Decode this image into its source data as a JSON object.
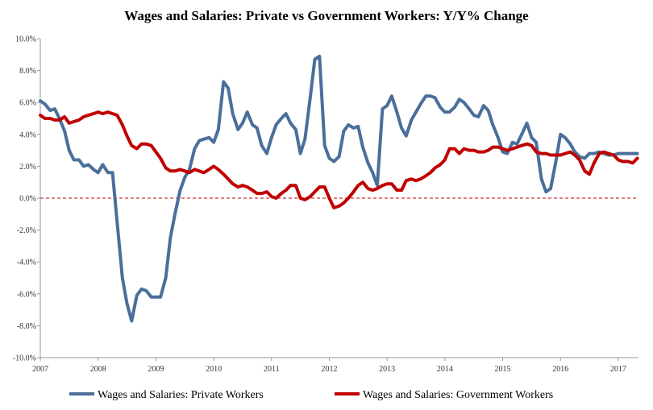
{
  "chart_data": {
    "type": "line",
    "title": "Wages and Salaries: Private vs Government Workers: Y/Y% Change",
    "xlabel": "",
    "ylabel": "",
    "xlim": [
      2007.0,
      2017.35
    ],
    "ylim": [
      -10,
      10
    ],
    "y_ticks": [
      10,
      8,
      6,
      4,
      2,
      0,
      -2,
      -4,
      -6,
      -8,
      -10
    ],
    "y_tick_labels": [
      "10.0%",
      "8.0%",
      "6.0%",
      "4.0%",
      "2.0%",
      "0.0%",
      "-2.0%",
      "-4.0%",
      "-6.0%",
      "-8.0%",
      "-10.0%"
    ],
    "x_ticks": [
      2007,
      2008,
      2009,
      2010,
      2011,
      2012,
      2013,
      2014,
      2015,
      2016,
      2017
    ],
    "x_tick_labels": [
      "2007",
      "2008",
      "2009",
      "2010",
      "2011",
      "2012",
      "2013",
      "2014",
      "2015",
      "2016",
      "2017"
    ],
    "reference_line": {
      "y": 0,
      "color": "#c00000",
      "style": "dashed"
    },
    "legend_position": "bottom",
    "series": [
      {
        "name": "Wages and Salaries: Private Workers",
        "color": "#4a6f9a",
        "x": [
          2007.0,
          2007.08,
          2007.17,
          2007.25,
          2007.33,
          2007.42,
          2007.5,
          2007.58,
          2007.67,
          2007.75,
          2007.83,
          2007.92,
          2008.0,
          2008.08,
          2008.17,
          2008.25,
          2008.33,
          2008.42,
          2008.5,
          2008.58,
          2008.67,
          2008.75,
          2008.83,
          2008.92,
          2009.0,
          2009.08,
          2009.17,
          2009.25,
          2009.33,
          2009.42,
          2009.5,
          2009.58,
          2009.67,
          2009.75,
          2009.83,
          2009.92,
          2010.0,
          2010.08,
          2010.17,
          2010.25,
          2010.33,
          2010.42,
          2010.5,
          2010.58,
          2010.67,
          2010.75,
          2010.83,
          2010.92,
          2011.0,
          2011.08,
          2011.17,
          2011.25,
          2011.33,
          2011.42,
          2011.5,
          2011.58,
          2011.67,
          2011.75,
          2011.83,
          2011.92,
          2012.0,
          2012.08,
          2012.17,
          2012.25,
          2012.33,
          2012.42,
          2012.5,
          2012.58,
          2012.67,
          2012.75,
          2012.83,
          2012.92,
          2013.0,
          2013.08,
          2013.17,
          2013.25,
          2013.33,
          2013.42,
          2013.5,
          2013.58,
          2013.67,
          2013.75,
          2013.83,
          2013.92,
          2014.0,
          2014.08,
          2014.17,
          2014.25,
          2014.33,
          2014.42,
          2014.5,
          2014.58,
          2014.67,
          2014.75,
          2014.83,
          2014.92,
          2015.0,
          2015.08,
          2015.17,
          2015.25,
          2015.33,
          2015.42,
          2015.5,
          2015.58,
          2015.67,
          2015.75,
          2015.83,
          2015.92,
          2016.0,
          2016.08,
          2016.17,
          2016.25,
          2016.33,
          2016.42,
          2016.5,
          2016.58,
          2016.67,
          2016.75,
          2016.83,
          2016.92,
          2017.0,
          2017.08,
          2017.17,
          2017.25,
          2017.33
        ],
        "values": [
          6.1,
          5.9,
          5.5,
          5.6,
          5.0,
          4.2,
          3.0,
          2.4,
          2.4,
          2.0,
          2.1,
          1.8,
          1.6,
          2.1,
          1.6,
          1.6,
          -1.5,
          -5.0,
          -6.6,
          -7.7,
          -6.1,
          -5.7,
          -5.8,
          -6.2,
          -6.2,
          -6.2,
          -5.0,
          -2.5,
          -1.0,
          0.5,
          1.3,
          1.8,
          3.1,
          3.6,
          3.7,
          3.8,
          3.5,
          4.3,
          7.3,
          6.9,
          5.3,
          4.3,
          4.7,
          5.4,
          4.6,
          4.4,
          3.3,
          2.8,
          3.8,
          4.6,
          5.0,
          5.3,
          4.7,
          4.3,
          2.8,
          3.7,
          6.3,
          8.7,
          8.9,
          3.3,
          2.5,
          2.3,
          2.6,
          4.2,
          4.6,
          4.4,
          4.5,
          3.2,
          2.2,
          1.6,
          0.8,
          5.6,
          5.8,
          6.4,
          5.4,
          4.4,
          3.9,
          4.9,
          5.4,
          5.9,
          6.4,
          6.4,
          6.3,
          5.7,
          5.4,
          5.4,
          5.7,
          6.2,
          6.0,
          5.6,
          5.2,
          5.1,
          5.8,
          5.5,
          4.6,
          3.8,
          2.9,
          2.8,
          3.5,
          3.4,
          4.0,
          4.7,
          3.8,
          3.5,
          1.2,
          0.4,
          0.6,
          2.3,
          4.0,
          3.8,
          3.4,
          2.9,
          2.6,
          2.5,
          2.8,
          2.8,
          2.9,
          2.8,
          2.7,
          2.7,
          2.8,
          2.8,
          2.8,
          2.8,
          2.8
        ]
      },
      {
        "name": "Wages and Salaries: Government Workers",
        "color": "#c00000",
        "x": [
          2007.0,
          2007.08,
          2007.17,
          2007.25,
          2007.33,
          2007.42,
          2007.5,
          2007.58,
          2007.67,
          2007.75,
          2007.83,
          2007.92,
          2008.0,
          2008.08,
          2008.17,
          2008.25,
          2008.33,
          2008.42,
          2008.5,
          2008.58,
          2008.67,
          2008.75,
          2008.83,
          2008.92,
          2009.0,
          2009.08,
          2009.17,
          2009.25,
          2009.33,
          2009.42,
          2009.5,
          2009.58,
          2009.67,
          2009.75,
          2009.83,
          2009.92,
          2010.0,
          2010.08,
          2010.17,
          2010.25,
          2010.33,
          2010.42,
          2010.5,
          2010.58,
          2010.67,
          2010.75,
          2010.83,
          2010.92,
          2011.0,
          2011.08,
          2011.17,
          2011.25,
          2011.33,
          2011.42,
          2011.5,
          2011.58,
          2011.67,
          2011.75,
          2011.83,
          2011.92,
          2012.0,
          2012.08,
          2012.17,
          2012.25,
          2012.33,
          2012.42,
          2012.5,
          2012.58,
          2012.67,
          2012.75,
          2012.83,
          2012.92,
          2013.0,
          2013.08,
          2013.17,
          2013.25,
          2013.33,
          2013.42,
          2013.5,
          2013.58,
          2013.67,
          2013.75,
          2013.83,
          2013.92,
          2014.0,
          2014.08,
          2014.17,
          2014.25,
          2014.33,
          2014.42,
          2014.5,
          2014.58,
          2014.67,
          2014.75,
          2014.83,
          2014.92,
          2015.0,
          2015.08,
          2015.17,
          2015.25,
          2015.33,
          2015.42,
          2015.5,
          2015.58,
          2015.67,
          2015.75,
          2015.83,
          2015.92,
          2016.0,
          2016.08,
          2016.17,
          2016.25,
          2016.33,
          2016.42,
          2016.5,
          2016.58,
          2016.67,
          2016.75,
          2016.83,
          2016.92,
          2017.0,
          2017.08,
          2017.17,
          2017.25,
          2017.33
        ],
        "values": [
          5.2,
          5.0,
          5.0,
          4.9,
          4.9,
          5.1,
          4.7,
          4.8,
          4.9,
          5.1,
          5.2,
          5.3,
          5.4,
          5.3,
          5.4,
          5.3,
          5.2,
          4.6,
          3.9,
          3.3,
          3.1,
          3.4,
          3.4,
          3.3,
          2.9,
          2.5,
          1.9,
          1.7,
          1.7,
          1.8,
          1.7,
          1.6,
          1.8,
          1.7,
          1.6,
          1.8,
          2.0,
          1.8,
          1.5,
          1.2,
          0.9,
          0.7,
          0.8,
          0.7,
          0.5,
          0.3,
          0.3,
          0.4,
          0.1,
          0.0,
          0.3,
          0.5,
          0.8,
          0.8,
          0.0,
          -0.1,
          0.1,
          0.4,
          0.7,
          0.7,
          0.0,
          -0.6,
          -0.5,
          -0.3,
          0.0,
          0.4,
          0.8,
          1.0,
          0.6,
          0.5,
          0.6,
          0.8,
          0.9,
          0.9,
          0.5,
          0.5,
          1.1,
          1.2,
          1.1,
          1.2,
          1.4,
          1.6,
          1.9,
          2.1,
          2.4,
          3.1,
          3.1,
          2.8,
          3.1,
          3.0,
          3.0,
          2.9,
          2.9,
          3.0,
          3.2,
          3.2,
          3.1,
          3.0,
          3.1,
          3.2,
          3.3,
          3.4,
          3.3,
          2.9,
          2.8,
          2.8,
          2.7,
          2.7,
          2.7,
          2.8,
          2.9,
          2.7,
          2.4,
          1.7,
          1.5,
          2.2,
          2.8,
          2.9,
          2.8,
          2.7,
          2.4,
          2.3,
          2.3,
          2.2,
          2.5
        ]
      }
    ]
  }
}
